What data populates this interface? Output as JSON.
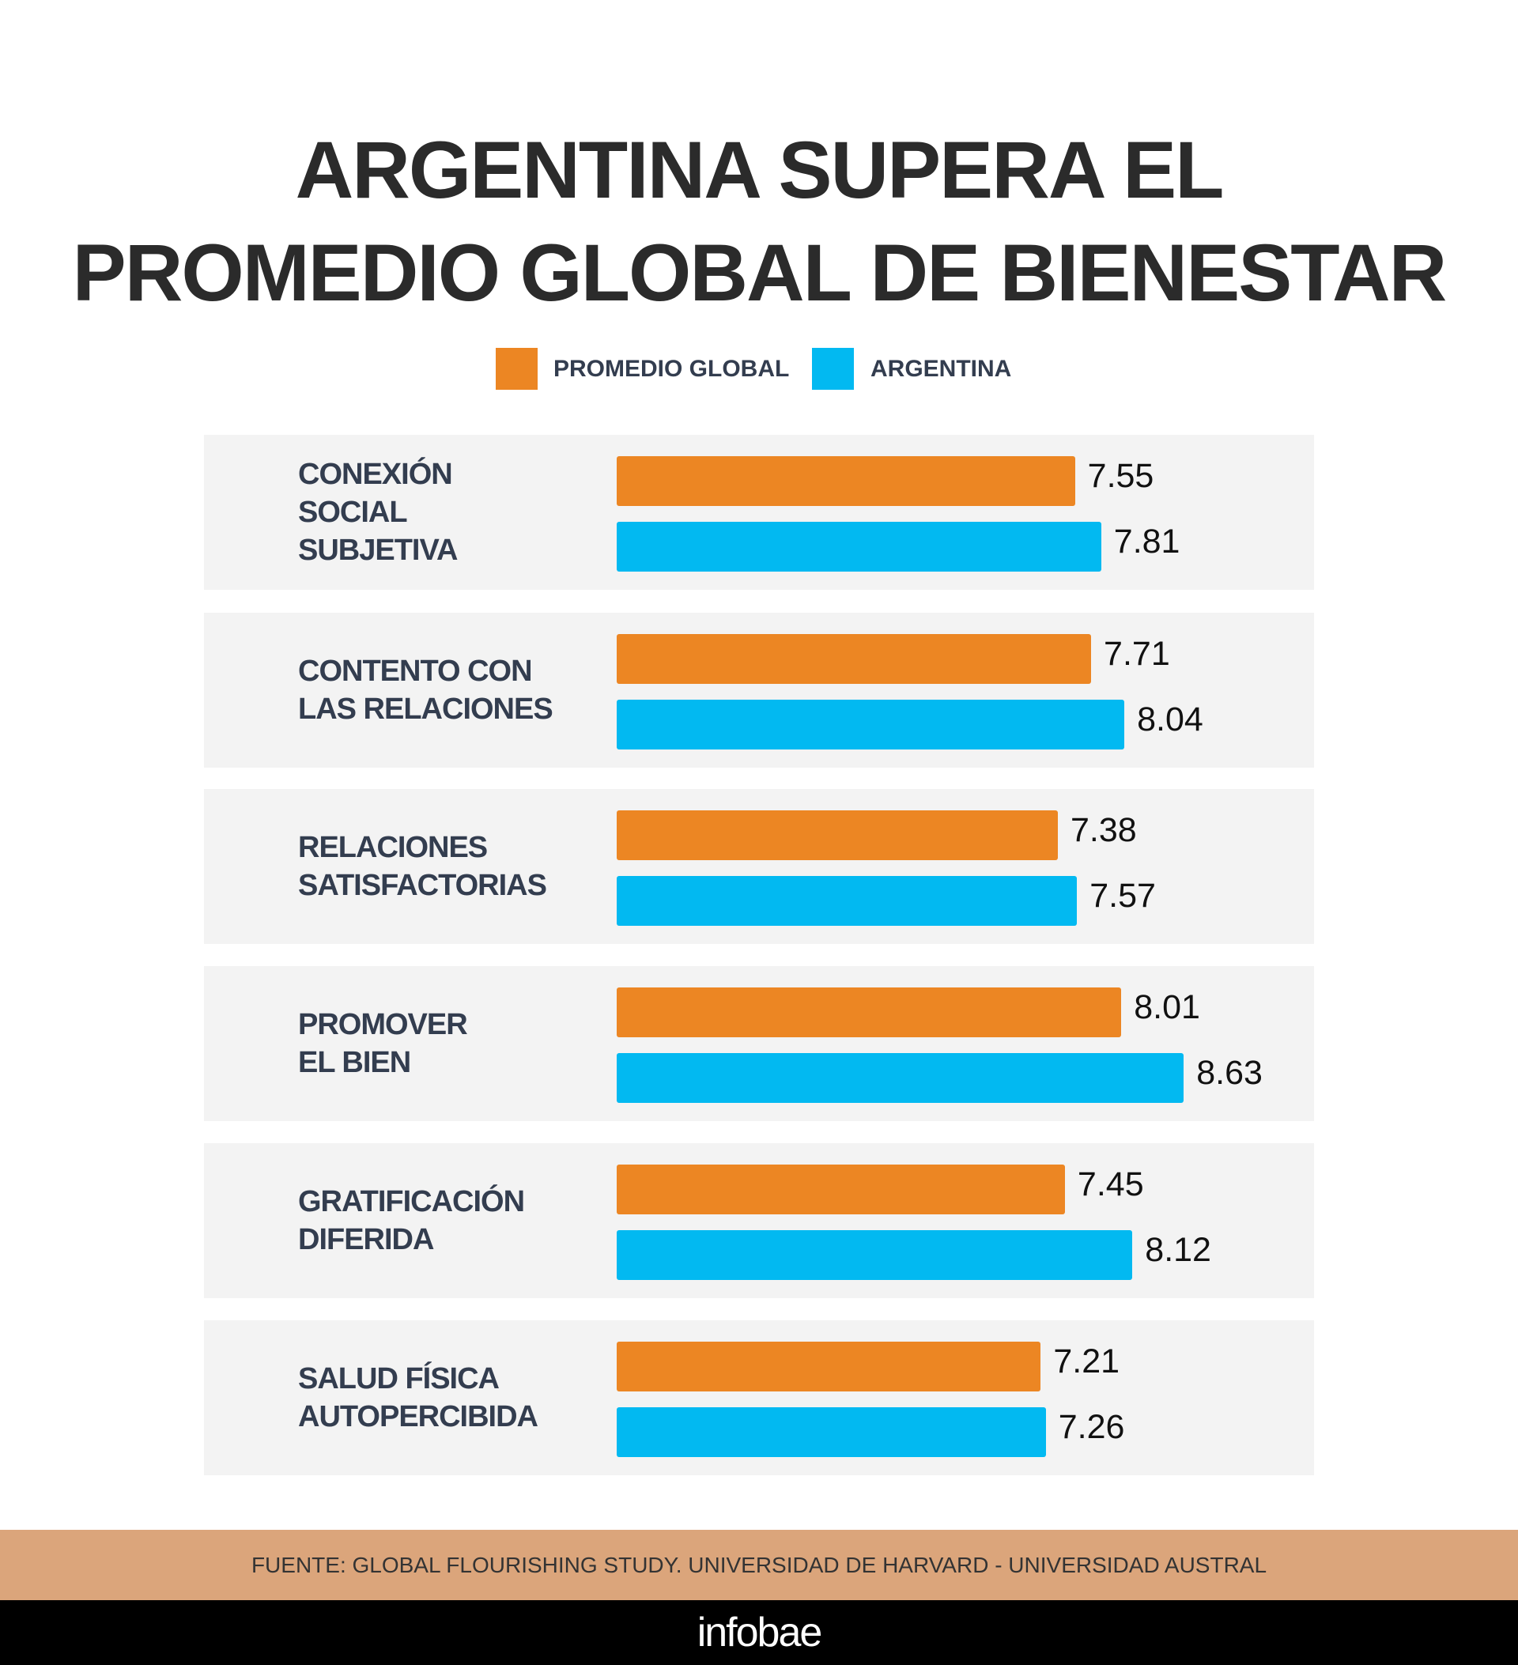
{
  "chart_data": {
    "type": "bar",
    "orientation": "horizontal",
    "title": "ARGENTINA SUPERA EL PROMEDIO GLOBAL DE BIENESTAR",
    "title_lines": [
      "ARGENTINA SUPERA EL",
      "PROMEDIO GLOBAL DE BIENESTAR"
    ],
    "categories": [
      [
        "CONEXIÓN",
        "SOCIAL",
        "SUBJETIVA"
      ],
      [
        "CONTENTO CON",
        "LAS RELACIONES"
      ],
      [
        "RELACIONES",
        "SATISFACTORIAS"
      ],
      [
        "PROMOVER",
        "EL BIEN"
      ],
      [
        "GRATIFICACIÓN",
        "DIFERIDA"
      ],
      [
        "SALUD FÍSICA",
        "AUTOPERCIBIDA"
      ]
    ],
    "series": [
      {
        "name": "PROMEDIO GLOBAL",
        "color": "#ec8623",
        "values": [
          7.55,
          7.71,
          7.38,
          8.01,
          7.45,
          7.21
        ],
        "labels": [
          "7.55",
          "7.71",
          "7.38",
          "8.01",
          "7.45",
          "7.21"
        ]
      },
      {
        "name": "ARGENTINA",
        "color": "#02b9f1",
        "values": [
          7.81,
          8.04,
          7.57,
          8.63,
          8.12,
          7.26
        ],
        "labels": [
          "7.81",
          "8.04",
          "7.57",
          "8.63",
          "8.12",
          "7.26"
        ]
      }
    ],
    "xlim": [
      3,
      10
    ],
    "legend": "top-center",
    "grid": false
  },
  "footer": {
    "source": "FUENTE: GLOBAL FLOURISHING STUDY. UNIVERSIDAD DE HARVARD - UNIVERSIDAD AUSTRAL"
  },
  "brand": {
    "logo": "infobae"
  }
}
